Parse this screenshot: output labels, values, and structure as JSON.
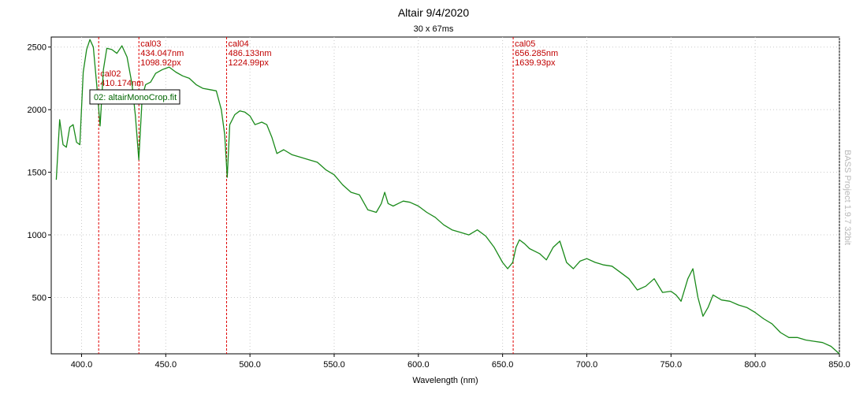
{
  "chart_data": {
    "type": "line",
    "title": "Altair 9/4/2020",
    "subtitle": "30 x 67ms",
    "xlabel": "Wavelength (nm)",
    "ylabel": "",
    "xlim": [
      382,
      850
    ],
    "ylim": [
      50,
      2580
    ],
    "grid": true,
    "x_ticks": [
      "400.0",
      "450.0",
      "500.0",
      "550.0",
      "600.0",
      "650.0",
      "700.0",
      "750.0",
      "800.0",
      "850.0"
    ],
    "y_ticks": [
      "500",
      "1000",
      "1500",
      "2000",
      "2500"
    ],
    "legend": {
      "entries": [
        "02: altairMonoCrop.fit"
      ],
      "placement": "upper-left inside"
    },
    "series": [
      {
        "name": "02: altairMonoCrop.fit",
        "color": "#1a8a1a",
        "x": [
          385,
          387,
          389,
          391,
          393,
          395,
          397,
          399,
          401,
          403,
          405,
          407,
          409,
          411,
          413,
          415,
          418,
          421,
          424,
          427,
          430,
          432,
          434,
          436,
          438,
          441,
          444,
          448,
          452,
          456,
          460,
          464,
          468,
          472,
          476,
          480,
          483,
          485,
          486.5,
          488,
          491,
          494,
          497,
          500,
          503,
          507,
          510,
          513,
          516,
          520,
          525,
          530,
          535,
          540,
          545,
          550,
          555,
          560,
          565,
          570,
          575,
          578,
          580,
          582,
          585,
          588,
          591,
          595,
          600,
          605,
          610,
          615,
          620,
          625,
          630,
          635,
          640,
          645,
          650,
          653,
          656,
          658,
          660,
          663,
          666,
          669,
          672,
          676,
          680,
          684,
          688,
          692,
          696,
          700,
          705,
          710,
          715,
          720,
          725,
          730,
          735,
          740,
          745,
          750,
          753,
          756,
          760,
          763,
          766,
          769,
          772,
          775,
          780,
          785,
          790,
          795,
          800,
          805,
          810,
          815,
          820,
          825,
          830,
          835,
          840,
          845,
          850
        ],
        "values": [
          1440,
          1920,
          1720,
          1700,
          1860,
          1880,
          1740,
          1720,
          2300,
          2480,
          2560,
          2500,
          2200,
          1870,
          2320,
          2490,
          2480,
          2450,
          2510,
          2420,
          2200,
          1950,
          1600,
          2100,
          2200,
          2220,
          2290,
          2320,
          2340,
          2300,
          2270,
          2250,
          2200,
          2170,
          2160,
          2150,
          2000,
          1800,
          1460,
          1880,
          1960,
          1990,
          1980,
          1950,
          1880,
          1900,
          1880,
          1780,
          1650,
          1680,
          1640,
          1620,
          1600,
          1580,
          1520,
          1480,
          1400,
          1340,
          1320,
          1200,
          1180,
          1250,
          1340,
          1250,
          1230,
          1250,
          1270,
          1260,
          1230,
          1180,
          1140,
          1080,
          1040,
          1020,
          1000,
          1040,
          990,
          900,
          780,
          730,
          780,
          900,
          960,
          930,
          890,
          870,
          850,
          800,
          900,
          950,
          780,
          730,
          790,
          810,
          780,
          760,
          750,
          700,
          650,
          560,
          590,
          650,
          540,
          550,
          520,
          470,
          650,
          730,
          500,
          350,
          420,
          520,
          480,
          470,
          440,
          420,
          380,
          330,
          290,
          220,
          180,
          180,
          160,
          150,
          140,
          110,
          50
        ]
      }
    ],
    "markers": [
      {
        "label": "cal02",
        "nm_text": "410.174nm",
        "px_text": "",
        "x": 410.174
      },
      {
        "label": "cal03",
        "nm_text": "434.047nm",
        "px_text": "1098.92px",
        "x": 434.047
      },
      {
        "label": "cal04",
        "nm_text": "486.133nm",
        "px_text": "1224.99px",
        "x": 486.133
      },
      {
        "label": "cal05",
        "nm_text": "656.285nm",
        "px_text": "1639.93px",
        "x": 656.285
      }
    ],
    "watermark": "BASS Project 1.9.7 32bit"
  }
}
